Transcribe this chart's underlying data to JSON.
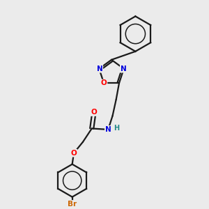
{
  "background_color": "#ebebeb",
  "bond_color": "#1a1a1a",
  "atom_colors": {
    "O": "#ff0000",
    "N": "#0000dd",
    "Br": "#cc6600",
    "H": "#228888",
    "C": "#1a1a1a"
  },
  "figsize": [
    3.0,
    3.0
  ],
  "dpi": 100,
  "lw": 1.6,
  "fontsize": 7.5
}
